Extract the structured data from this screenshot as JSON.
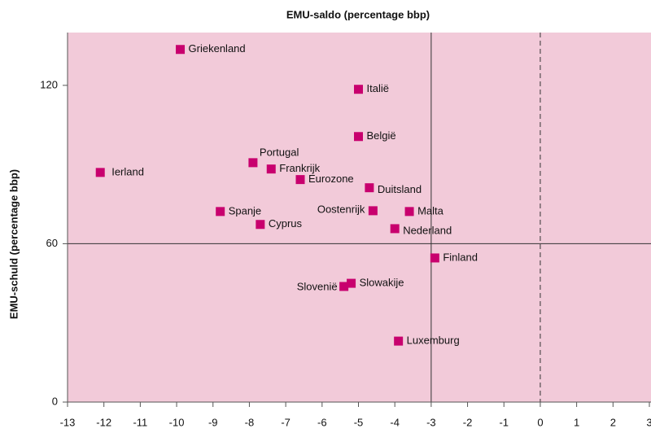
{
  "chart_data": {
    "type": "scatter",
    "xlabel": "EMU-saldo (percentage bbp)",
    "ylabel": "EMU-schuld (percentage bbp)",
    "point_labels": [
      "Griekenland",
      "Italië",
      "België",
      "Ierland",
      "Portugal",
      "Frankrijk",
      "Eurozone",
      "Duitsland",
      "Spanje",
      "Oostenrijk",
      "Malta",
      "Cyprus",
      "Nederland",
      "Finland",
      "Slowakije",
      "Slovenië",
      "Luxemburg"
    ],
    "x": [
      -9.9,
      -5.0,
      -5.0,
      -12.1,
      -7.9,
      -7.4,
      -6.6,
      -4.7,
      -8.8,
      -4.6,
      -3.6,
      -7.7,
      -4.0,
      -2.9,
      -5.2,
      -5.4,
      -3.9
    ],
    "values": [
      133.6,
      118.5,
      100.6,
      87,
      90.7,
      88.3,
      84.3,
      81.2,
      72.2,
      72.5,
      72.2,
      67.3,
      65.7,
      54.6,
      45,
      43.8,
      23.1
    ],
    "color": "#c8006e",
    "background": "#f2cad9",
    "xlim": [
      -13,
      3
    ],
    "xticks": [
      -13,
      -12,
      -11,
      -10,
      -9,
      -8,
      -7,
      -6,
      -5,
      -4,
      -3,
      -2,
      -1,
      0,
      1,
      2,
      3
    ],
    "ylim": [
      0,
      140
    ],
    "yticks": [
      0,
      60,
      120
    ],
    "vlines": [
      {
        "value": -3,
        "style": "solid"
      },
      {
        "value": 0,
        "style": "dashed"
      }
    ],
    "hlines": [
      {
        "value": 60,
        "style": "solid"
      }
    ]
  }
}
